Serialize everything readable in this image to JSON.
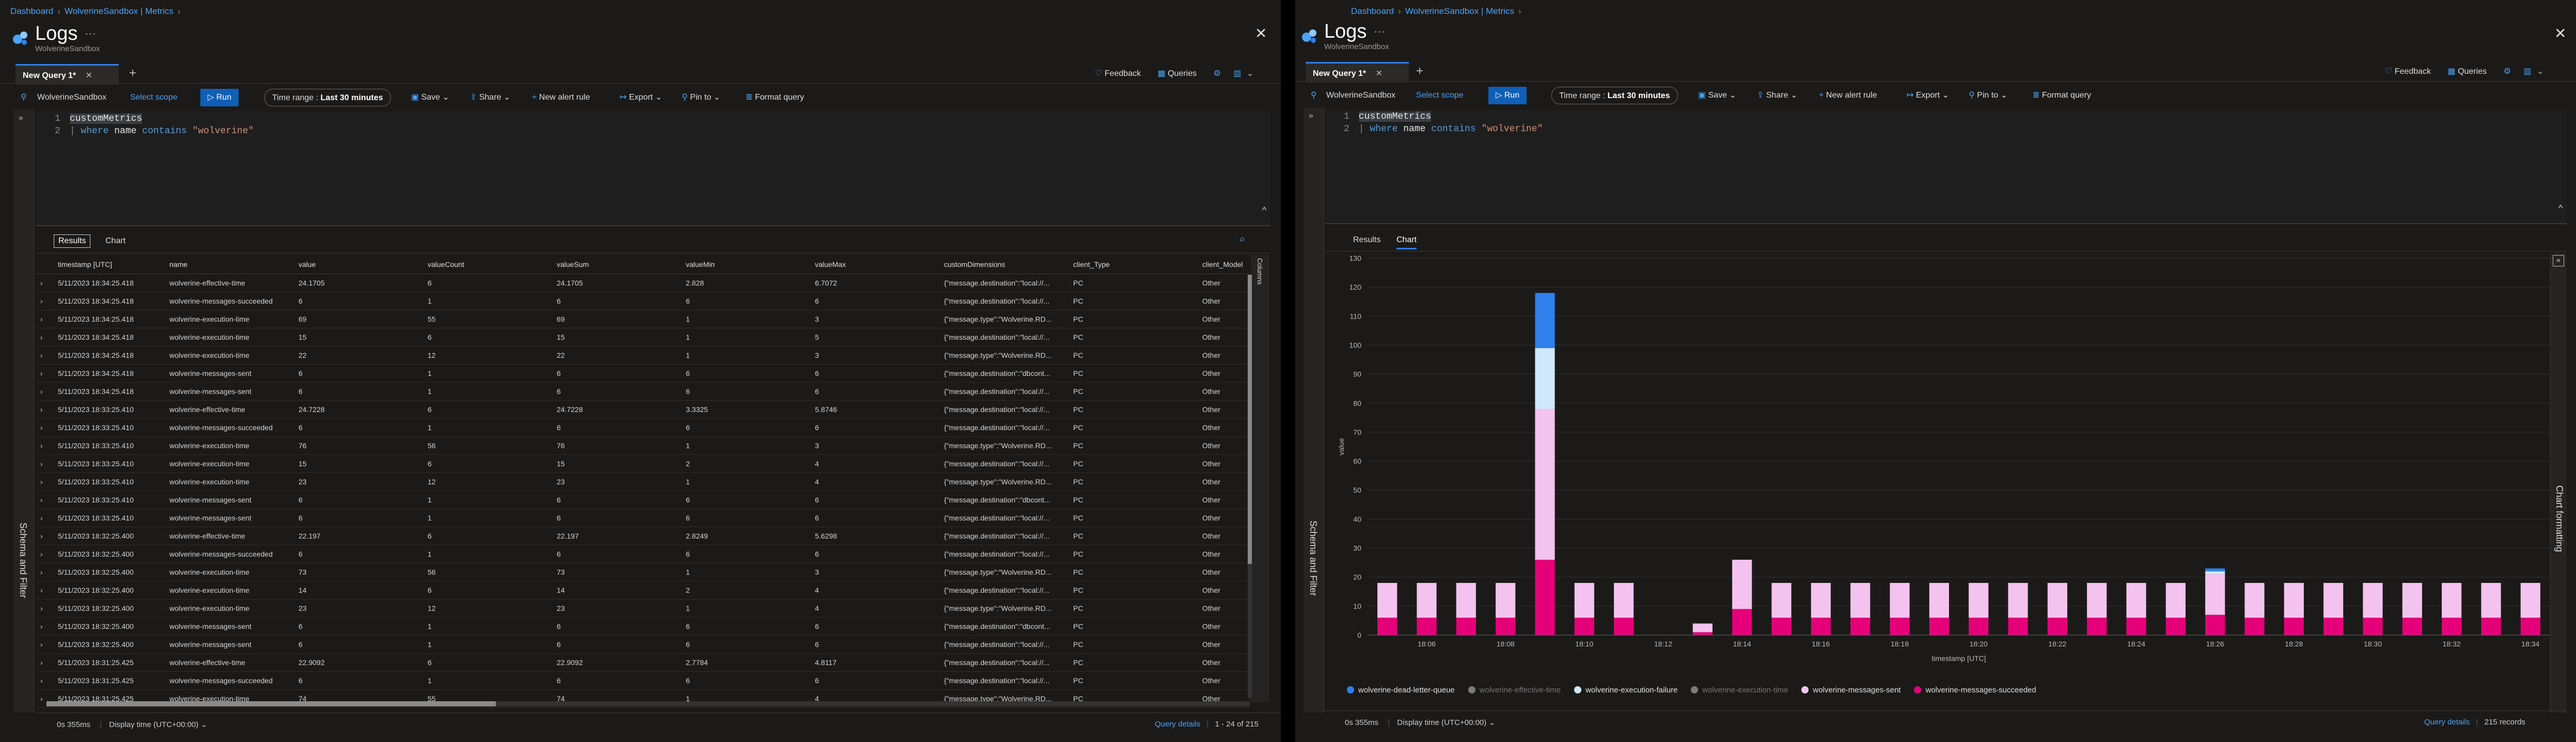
{
  "common": {
    "breadcrumb": [
      "Dashboard",
      "WolverineSandbox | Metrics"
    ],
    "title": "Logs",
    "subtitle": "WolverineSandbox",
    "tab_label": "New Query 1*",
    "feedback": "Feedback",
    "queries": "Queries",
    "scope": "WolverineSandbox",
    "select_scope": "Select scope",
    "run": "Run",
    "time_range_label": "Time range :",
    "time_range_value": "Last 30 minutes",
    "save": "Save",
    "share": "Share",
    "new_alert": "New alert rule",
    "export": "Export",
    "pin": "Pin to",
    "format": "Format query",
    "line1_num": "1",
    "line2_num": "2",
    "line1": "customMetrics",
    "line2_where": "where",
    "line2_name": "name",
    "line2_contains": "contains",
    "line2_str": "\"wolverine\"",
    "schema": "Schema and Filter",
    "results_tab": "Results",
    "chart_tab": "Chart",
    "status_time": "0s 355ms",
    "display_time": "Display time (UTC+00:00)",
    "query_details": "Query details"
  },
  "left": {
    "columns_label": "Columns",
    "pager": "1 - 24 of 215",
    "headers": [
      "timestamp [UTC]",
      "name",
      "value",
      "valueCount",
      "valueSum",
      "valueMin",
      "valueMax",
      "customDimensions",
      "client_Type",
      "client_Model"
    ],
    "rows": [
      [
        "5/11/2023 18:34:25.418",
        "wolverine-effective-time",
        "24.1705",
        "6",
        "24.1705",
        "2.828",
        "6.7072",
        "{\"message.destination\":\"local://...",
        "PC",
        "Other"
      ],
      [
        "5/11/2023 18:34:25.418",
        "wolverine-messages-succeeded",
        "6",
        "1",
        "6",
        "6",
        "6",
        "{\"message.destination\":\"local://...",
        "PC",
        "Other"
      ],
      [
        "5/11/2023 18:34:25.418",
        "wolverine-execution-time",
        "69",
        "55",
        "69",
        "1",
        "3",
        "{\"message.type\":\"Wolverine.RD...",
        "PC",
        "Other"
      ],
      [
        "5/11/2023 18:34:25.418",
        "wolverine-execution-time",
        "15",
        "6",
        "15",
        "1",
        "5",
        "{\"message.destination\":\"local://...",
        "PC",
        "Other"
      ],
      [
        "5/11/2023 18:34:25.418",
        "wolverine-execution-time",
        "22",
        "12",
        "22",
        "1",
        "3",
        "{\"message.type\":\"Wolverine.RD...",
        "PC",
        "Other"
      ],
      [
        "5/11/2023 18:34:25.418",
        "wolverine-messages-sent",
        "6",
        "1",
        "6",
        "6",
        "6",
        "{\"message.destination\":\"dbcont...",
        "PC",
        "Other"
      ],
      [
        "5/11/2023 18:34:25.418",
        "wolverine-messages-sent",
        "6",
        "1",
        "6",
        "6",
        "6",
        "{\"message.destination\":\"local://...",
        "PC",
        "Other"
      ],
      [
        "5/11/2023 18:33:25.410",
        "wolverine-effective-time",
        "24.7228",
        "6",
        "24.7228",
        "3.3325",
        "5.8746",
        "{\"message.destination\":\"local://...",
        "PC",
        "Other"
      ],
      [
        "5/11/2023 18:33:25.410",
        "wolverine-messages-succeeded",
        "6",
        "1",
        "6",
        "6",
        "6",
        "{\"message.destination\":\"local://...",
        "PC",
        "Other"
      ],
      [
        "5/11/2023 18:33:25.410",
        "wolverine-execution-time",
        "76",
        "56",
        "76",
        "1",
        "3",
        "{\"message.type\":\"Wolverine.RD...",
        "PC",
        "Other"
      ],
      [
        "5/11/2023 18:33:25.410",
        "wolverine-execution-time",
        "15",
        "6",
        "15",
        "2",
        "4",
        "{\"message.destination\":\"local://...",
        "PC",
        "Other"
      ],
      [
        "5/11/2023 18:33:25.410",
        "wolverine-execution-time",
        "23",
        "12",
        "23",
        "1",
        "4",
        "{\"message.type\":\"Wolverine.RD...",
        "PC",
        "Other"
      ],
      [
        "5/11/2023 18:33:25.410",
        "wolverine-messages-sent",
        "6",
        "1",
        "6",
        "6",
        "6",
        "{\"message.destination\":\"dbcont...",
        "PC",
        "Other"
      ],
      [
        "5/11/2023 18:33:25.410",
        "wolverine-messages-sent",
        "6",
        "1",
        "6",
        "6",
        "6",
        "{\"message.destination\":\"local://...",
        "PC",
        "Other"
      ],
      [
        "5/11/2023 18:32:25.400",
        "wolverine-effective-time",
        "22.197",
        "6",
        "22.197",
        "2.8249",
        "5.6298",
        "{\"message.destination\":\"local://...",
        "PC",
        "Other"
      ],
      [
        "5/11/2023 18:32:25.400",
        "wolverine-messages-succeeded",
        "6",
        "1",
        "6",
        "6",
        "6",
        "{\"message.destination\":\"local://...",
        "PC",
        "Other"
      ],
      [
        "5/11/2023 18:32:25.400",
        "wolverine-execution-time",
        "73",
        "56",
        "73",
        "1",
        "3",
        "{\"message.type\":\"Wolverine.RD...",
        "PC",
        "Other"
      ],
      [
        "5/11/2023 18:32:25.400",
        "wolverine-execution-time",
        "14",
        "6",
        "14",
        "2",
        "4",
        "{\"message.destination\":\"local://...",
        "PC",
        "Other"
      ],
      [
        "5/11/2023 18:32:25.400",
        "wolverine-execution-time",
        "23",
        "12",
        "23",
        "1",
        "4",
        "{\"message.type\":\"Wolverine.RD...",
        "PC",
        "Other"
      ],
      [
        "5/11/2023 18:32:25.400",
        "wolverine-messages-sent",
        "6",
        "1",
        "6",
        "6",
        "6",
        "{\"message.destination\":\"dbcont...",
        "PC",
        "Other"
      ],
      [
        "5/11/2023 18:32:25.400",
        "wolverine-messages-sent",
        "6",
        "1",
        "6",
        "6",
        "6",
        "{\"message.destination\":\"local://...",
        "PC",
        "Other"
      ],
      [
        "5/11/2023 18:31:25.425",
        "wolverine-effective-time",
        "22.9092",
        "6",
        "22.9092",
        "2.7784",
        "4.8117",
        "{\"message.destination\":\"local://...",
        "PC",
        "Other"
      ],
      [
        "5/11/2023 18:31:25.425",
        "wolverine-messages-succeeded",
        "6",
        "1",
        "6",
        "6",
        "6",
        "{\"message.destination\":\"local://...",
        "PC",
        "Other"
      ],
      [
        "5/11/2023 18:31:25.425",
        "wolverine-execution-time",
        "74",
        "55",
        "74",
        "1",
        "4",
        "{\"message.type\":\"Wolverine.RD...",
        "PC",
        "Other"
      ]
    ]
  },
  "right": {
    "chart_formatting": "Chart formatting",
    "records": "215 records",
    "legend": [
      {
        "name": "wolverine-dead-letter-queue",
        "color": "#2f80ed",
        "dim": false
      },
      {
        "name": "wolverine-effective-time",
        "color": "#7a7a7a",
        "dim": true
      },
      {
        "name": "wolverine-execution-failure",
        "color": "#cfe8fb",
        "dim": false
      },
      {
        "name": "wolverine-execution-time",
        "color": "#7a7a7a",
        "dim": true
      },
      {
        "name": "wolverine-messages-sent",
        "color": "#f4c2ee",
        "dim": false
      },
      {
        "name": "wolverine-messages-succeeded",
        "color": "#e5007a",
        "dim": false
      }
    ]
  },
  "chart_data": {
    "type": "bar",
    "stacked": true,
    "xlabel": "timestamp [UTC]",
    "ylabel": "value",
    "ylim": [
      0,
      130
    ],
    "yticks": [
      0,
      10,
      20,
      30,
      40,
      50,
      60,
      70,
      80,
      90,
      100,
      110,
      120,
      130
    ],
    "xtick_labels": [
      "18:06",
      "18:08",
      "18:10",
      "18:12",
      "18:14",
      "18:16",
      "18:18",
      "18:20",
      "18:22",
      "18:24",
      "18:26",
      "18:28",
      "18:30",
      "18:32",
      "18:34"
    ],
    "grid": true,
    "legend_position": "bottom",
    "categories": [
      "18:05",
      "18:06",
      "18:07",
      "18:08",
      "18:09",
      "18:10",
      "18:11",
      "18:12",
      "18:13",
      "18:14",
      "18:15",
      "18:16",
      "18:17",
      "18:18",
      "18:19",
      "18:20",
      "18:21",
      "18:22",
      "18:23",
      "18:24",
      "18:25",
      "18:26",
      "18:27",
      "18:28",
      "18:29",
      "18:30",
      "18:31",
      "18:32",
      "18:33",
      "18:34"
    ],
    "series": [
      {
        "name": "wolverine-messages-succeeded",
        "color": "#e5007a",
        "values": [
          6,
          6,
          6,
          6,
          26,
          6,
          6,
          0,
          1,
          9,
          6,
          6,
          6,
          6,
          6,
          6,
          6,
          6,
          6,
          6,
          6,
          7,
          6,
          6,
          6,
          6,
          6,
          6,
          6,
          6
        ]
      },
      {
        "name": "wolverine-messages-sent",
        "color": "#f4c2ee",
        "values": [
          12,
          12,
          12,
          12,
          52,
          12,
          12,
          0,
          3,
          17,
          12,
          12,
          12,
          12,
          12,
          12,
          12,
          12,
          12,
          12,
          12,
          14,
          12,
          12,
          12,
          12,
          12,
          12,
          12,
          12
        ]
      },
      {
        "name": "wolverine-execution-failure",
        "color": "#cfe8fb",
        "values": [
          0,
          0,
          0,
          0,
          21,
          0,
          0,
          0,
          0,
          0,
          0,
          0,
          0,
          0,
          0,
          0,
          0,
          0,
          0,
          0,
          0,
          1,
          0,
          0,
          0,
          0,
          0,
          0,
          0,
          0
        ]
      },
      {
        "name": "wolverine-dead-letter-queue",
        "color": "#2f80ed",
        "values": [
          0,
          0,
          0,
          0,
          19,
          0,
          0,
          0,
          0,
          0,
          0,
          0,
          0,
          0,
          0,
          0,
          0,
          0,
          0,
          0,
          0,
          1,
          0,
          0,
          0,
          0,
          0,
          0,
          0,
          0
        ]
      }
    ]
  }
}
